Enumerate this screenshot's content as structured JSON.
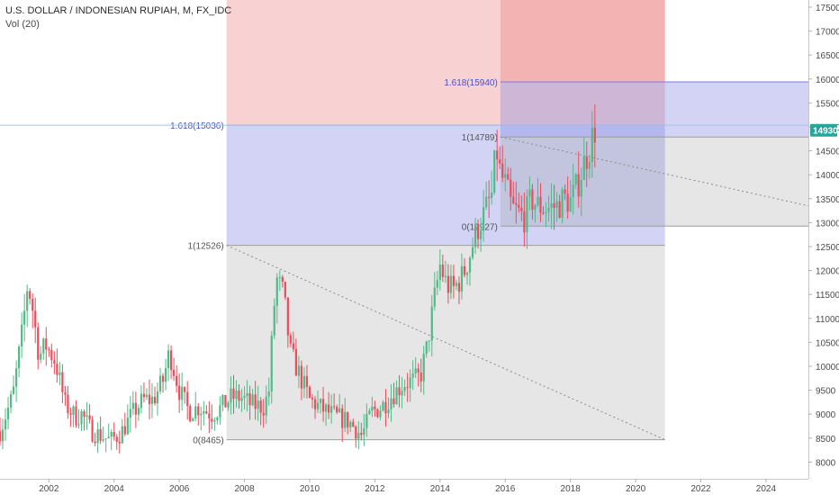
{
  "header": {
    "title": "U.S. DOLLAR / INDONESIAN RUPIAH, M, FX_IDC",
    "volume_label": "Vol (20)"
  },
  "chart_data": {
    "type": "candlestick",
    "title": "U.S. DOLLAR / INDONESIAN RUPIAH, M, FX_IDC",
    "xlim": [
      2000.5,
      2025.3
    ],
    "ylim": [
      7650,
      17650
    ],
    "x_tick_labels": [
      "2002",
      "2004",
      "2006",
      "2008",
      "2010",
      "2012",
      "2014",
      "2016",
      "2018",
      "2020",
      "2022",
      "2024"
    ],
    "y_tick_labels": [
      "8000",
      "8500",
      "9000",
      "9500",
      "10000",
      "10500",
      "11000",
      "11500",
      "12000",
      "12500",
      "13000",
      "13500",
      "14000",
      "14500",
      "15000",
      "15500",
      "16000",
      "16500",
      "17000",
      "17500"
    ],
    "last_price": {
      "label": "14930",
      "value": 14930
    },
    "colors": {
      "up": "#53b987",
      "down": "#eb4d5c",
      "last": "#26a69a"
    },
    "series_path": [
      [
        2000.5,
        8650
      ],
      [
        2000.9,
        9400
      ],
      [
        2001.2,
        10800
      ],
      [
        2001.35,
        11750
      ],
      [
        2001.5,
        11200
      ],
      [
        2001.7,
        10200
      ],
      [
        2001.9,
        10450
      ],
      [
        2002.2,
        10100
      ],
      [
        2002.5,
        9200
      ],
      [
        2002.8,
        8950
      ],
      [
        2003.0,
        9000
      ],
      [
        2003.3,
        8650
      ],
      [
        2003.6,
        8550
      ],
      [
        2003.9,
        8450
      ],
      [
        2004.2,
        8600
      ],
      [
        2004.6,
        9050
      ],
      [
        2004.9,
        9300
      ],
      [
        2005.2,
        9300
      ],
      [
        2005.5,
        9700
      ],
      [
        2005.7,
        10300
      ],
      [
        2006.0,
        9500
      ],
      [
        2006.3,
        9050
      ],
      [
        2006.6,
        9150
      ],
      [
        2007.0,
        9000
      ],
      [
        2007.3,
        9150
      ],
      [
        2007.6,
        9350
      ],
      [
        2007.9,
        9350
      ],
      [
        2008.2,
        9200
      ],
      [
        2008.6,
        9150
      ],
      [
        2008.75,
        9500
      ],
      [
        2008.9,
        11200
      ],
      [
        2009.0,
        11800
      ],
      [
        2009.2,
        11500
      ],
      [
        2009.4,
        10300
      ],
      [
        2009.7,
        9800
      ],
      [
        2010.0,
        9300
      ],
      [
        2010.4,
        9100
      ],
      [
        2010.8,
        8950
      ],
      [
        2011.2,
        8850
      ],
      [
        2011.6,
        8550
      ],
      [
        2011.9,
        9050
      ],
      [
        2012.2,
        9150
      ],
      [
        2012.6,
        9450
      ],
      [
        2012.9,
        9650
      ],
      [
        2013.2,
        9700
      ],
      [
        2013.4,
        9800
      ],
      [
        2013.6,
        10400
      ],
      [
        2013.8,
        11300
      ],
      [
        2014.0,
        12100
      ],
      [
        2014.2,
        11700
      ],
      [
        2014.4,
        11600
      ],
      [
        2014.7,
        11900
      ],
      [
        2014.9,
        12300
      ],
      [
        2015.1,
        12800
      ],
      [
        2015.3,
        13100
      ],
      [
        2015.6,
        13600
      ],
      [
        2015.72,
        14600
      ],
      [
        2015.85,
        14000
      ],
      [
        2016.0,
        13800
      ],
      [
        2016.2,
        13300
      ],
      [
        2016.4,
        13200
      ],
      [
        2016.6,
        13100
      ],
      [
        2016.8,
        13500
      ],
      [
        2017.0,
        13350
      ],
      [
        2017.3,
        13300
      ],
      [
        2017.6,
        13350
      ],
      [
        2017.8,
        13500
      ],
      [
        2018.0,
        13450
      ],
      [
        2018.2,
        13750
      ],
      [
        2018.4,
        14200
      ],
      [
        2018.6,
        14600
      ],
      [
        2018.72,
        14930
      ]
    ],
    "fibonacci_extensions": [
      {
        "x_range": [
          2007.45,
          2020.9
        ],
        "levels": [
          {
            "label": "1.618(15036)",
            "value": 15036
          },
          {
            "label": "1(12526)",
            "value": 12526
          },
          {
            "label": "0(8465)",
            "value": 8465
          }
        ],
        "upper_zone_top": 17650,
        "trend_line": {
          "from": [
            2007.45,
            12526
          ],
          "to": [
            2020.9,
            8465
          ]
        }
      },
      {
        "x_range": [
          2015.85,
          2025.3
        ],
        "upper_zone_x_end": 2020.9,
        "levels": [
          {
            "label": "1.618(15940)",
            "value": 15940
          },
          {
            "label": "1(14789)",
            "value": 14789
          },
          {
            "label": "0(12927)",
            "value": 12927
          }
        ],
        "upper_zone_top": 17650,
        "trend_line": {
          "from": [
            2015.85,
            14789
          ],
          "to": [
            2025.3,
            13350
          ]
        }
      }
    ],
    "horizontal_line": {
      "value": 15036
    }
  }
}
